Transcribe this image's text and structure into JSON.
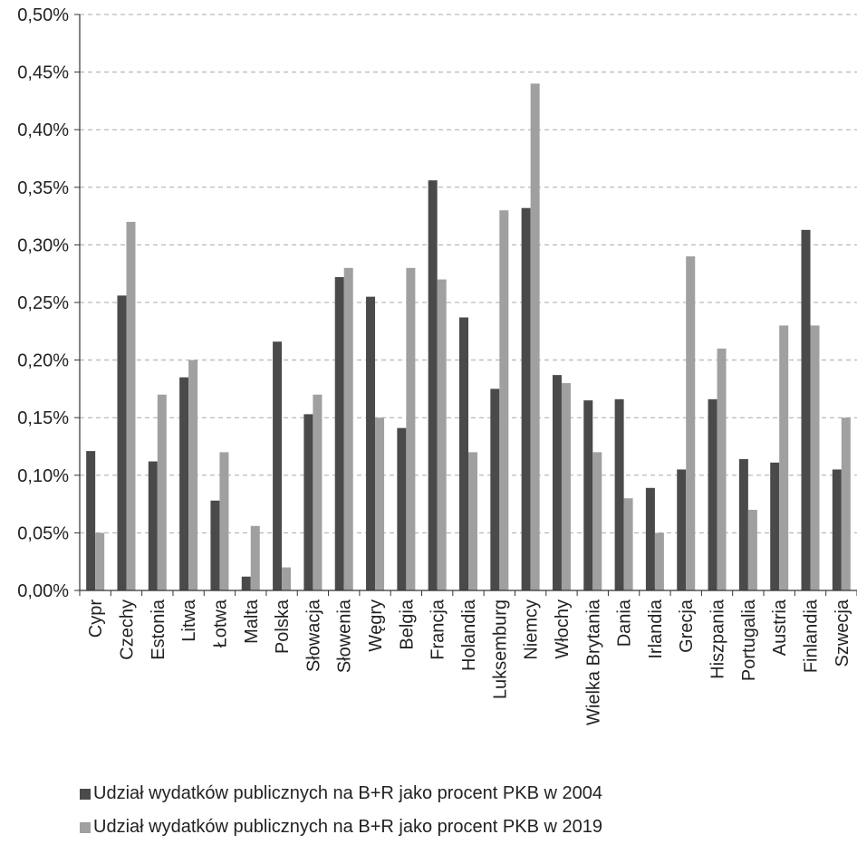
{
  "chart_data": {
    "type": "bar",
    "title": "",
    "xlabel": "",
    "ylabel": "",
    "ylim": [
      0,
      0.5
    ],
    "y_tick_labels": [
      "0,00%",
      "0,05%",
      "0,10%",
      "0,15%",
      "0,20%",
      "0,25%",
      "0,30%",
      "0,35%",
      "0,40%",
      "0,45%",
      "0,50%"
    ],
    "grid": "horizontal dashed",
    "legend_position": "bottom",
    "categories": [
      "Cypr",
      "Czechy",
      "Estonia",
      "Litwa",
      "Łotwa",
      "Malta",
      "Polska",
      "Słowacja",
      "Słowenia",
      "Węgry",
      "Belgia",
      "Francja",
      "Holandia",
      "Luksemburg",
      "Niemcy",
      "Włochy",
      "Wielka Brytania",
      "Dania",
      "Irlandia",
      "Grecja",
      "Hiszpania",
      "Portugalia",
      "Austria",
      "Finlandia",
      "Szwecja"
    ],
    "series": [
      {
        "name": "Udział wydatków publicznych na B+R jako procent PKB w 2004",
        "color": "#4a4a4a",
        "values": [
          0.121,
          0.256,
          0.112,
          0.185,
          0.078,
          0.012,
          0.216,
          0.153,
          0.272,
          0.255,
          0.141,
          0.356,
          0.237,
          0.175,
          0.332,
          0.187,
          0.165,
          0.166,
          0.089,
          0.105,
          0.166,
          0.114,
          0.111,
          0.313,
          0.105
        ]
      },
      {
        "name": "Udział wydatków publicznych na B+R jako procent PKB w 2019",
        "color": "#a0a0a0",
        "values": [
          0.05,
          0.32,
          0.17,
          0.2,
          0.12,
          0.056,
          0.02,
          0.17,
          0.28,
          0.15,
          0.28,
          0.27,
          0.12,
          0.33,
          0.44,
          0.18,
          0.12,
          0.08,
          0.05,
          0.29,
          0.21,
          0.07,
          0.23,
          0.23,
          0.15
        ]
      }
    ]
  }
}
